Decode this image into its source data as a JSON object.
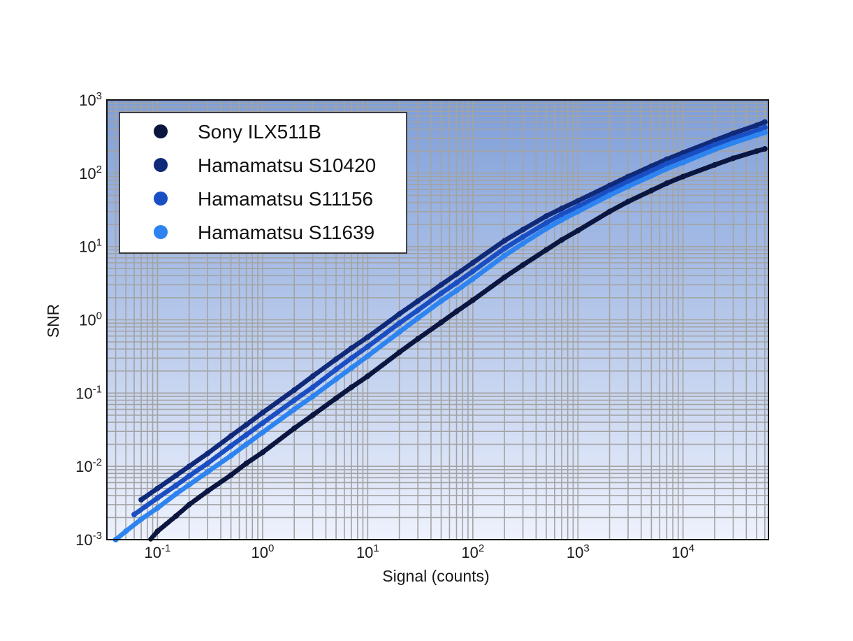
{
  "chart_data": {
    "type": "scatter",
    "title": "",
    "xlabel": "Signal (counts)",
    "ylabel": "SNR",
    "x_scale": "log",
    "y_scale": "log",
    "xlim": [
      0.033,
      65000
    ],
    "ylim": [
      0.001,
      1000
    ],
    "x_ticks": [
      {
        "base": "10",
        "exp": "-1",
        "value": 0.1
      },
      {
        "base": "10",
        "exp": "0",
        "value": 1
      },
      {
        "base": "10",
        "exp": "1",
        "value": 10
      },
      {
        "base": "10",
        "exp": "2",
        "value": 100
      },
      {
        "base": "10",
        "exp": "3",
        "value": 1000
      },
      {
        "base": "10",
        "exp": "4",
        "value": 10000
      }
    ],
    "y_ticks": [
      {
        "base": "10",
        "exp": "-3",
        "value": 0.001
      },
      {
        "base": "10",
        "exp": "-2",
        "value": 0.01
      },
      {
        "base": "10",
        "exp": "-1",
        "value": 0.1
      },
      {
        "base": "10",
        "exp": "0",
        "value": 1
      },
      {
        "base": "10",
        "exp": "1",
        "value": 10
      },
      {
        "base": "10",
        "exp": "2",
        "value": 100
      },
      {
        "base": "10",
        "exp": "3",
        "value": 1000
      }
    ],
    "grid": true,
    "legend_position": "top-left",
    "series": [
      {
        "name": "Sony ILX511B",
        "color": "#0b1640",
        "x": [
          0.08,
          0.1,
          0.15,
          0.2,
          0.3,
          0.5,
          0.7,
          1,
          2,
          3,
          5,
          7,
          10,
          20,
          30,
          50,
          70,
          100,
          200,
          300,
          500,
          700,
          1000,
          2000,
          3000,
          5000,
          7000,
          10000,
          20000,
          30000,
          50000,
          60000
        ],
        "y": [
          0.0009,
          0.0013,
          0.0021,
          0.003,
          0.0046,
          0.0076,
          0.011,
          0.0155,
          0.033,
          0.05,
          0.085,
          0.12,
          0.17,
          0.36,
          0.55,
          0.92,
          1.3,
          1.85,
          3.8,
          5.6,
          9.0,
          12.3,
          16.5,
          30,
          41,
          58,
          73,
          90,
          130,
          160,
          200,
          215
        ]
      },
      {
        "name": "Hamamatsu S10420",
        "color": "#102a7a",
        "x": [
          0.07,
          0.1,
          0.15,
          0.2,
          0.3,
          0.5,
          0.7,
          1,
          2,
          3,
          5,
          7,
          10,
          20,
          30,
          50,
          70,
          100,
          200,
          300,
          500,
          700,
          1000,
          2000,
          3000,
          5000,
          7000,
          10000,
          20000,
          30000,
          50000,
          60000
        ],
        "y": [
          0.0035,
          0.005,
          0.0075,
          0.01,
          0.015,
          0.026,
          0.037,
          0.054,
          0.11,
          0.17,
          0.29,
          0.41,
          0.58,
          1.2,
          1.8,
          3.0,
          4.2,
          6.0,
          12,
          17,
          26,
          33,
          42,
          68,
          90,
          125,
          155,
          190,
          280,
          350,
          450,
          500
        ]
      },
      {
        "name": "Hamamatsu S11156",
        "color": "#1a4fc4",
        "x": [
          0.06,
          0.1,
          0.15,
          0.2,
          0.3,
          0.5,
          0.7,
          1,
          2,
          3,
          5,
          7,
          10,
          20,
          30,
          50,
          70,
          100,
          200,
          300,
          500,
          700,
          1000,
          2000,
          3000,
          5000,
          7000,
          10000,
          20000,
          30000,
          50000,
          60000
        ],
        "y": [
          0.0022,
          0.0037,
          0.0055,
          0.0074,
          0.011,
          0.019,
          0.027,
          0.039,
          0.08,
          0.12,
          0.21,
          0.3,
          0.43,
          0.9,
          1.35,
          2.3,
          3.2,
          4.6,
          9.4,
          13.5,
          21,
          27.5,
          35,
          58,
          77,
          108,
          135,
          165,
          245,
          300,
          380,
          420
        ]
      },
      {
        "name": "Hamamatsu S11639",
        "color": "#2d84f0",
        "x": [
          0.04,
          0.05,
          0.07,
          0.1,
          0.15,
          0.2,
          0.3,
          0.5,
          0.7,
          1,
          2,
          3,
          5,
          7,
          10,
          20,
          30,
          50,
          70,
          100,
          200,
          300,
          500,
          700,
          1000,
          2000,
          3000,
          5000,
          7000,
          10000,
          20000,
          30000,
          50000,
          60000
        ],
        "y": [
          0.001,
          0.0013,
          0.0019,
          0.0027,
          0.0042,
          0.0056,
          0.0084,
          0.014,
          0.02,
          0.029,
          0.06,
          0.09,
          0.155,
          0.22,
          0.32,
          0.68,
          1.05,
          1.8,
          2.5,
          3.6,
          7.5,
          11,
          17.5,
          23,
          30,
          50,
          66,
          92,
          115,
          140,
          210,
          260,
          330,
          360
        ]
      }
    ]
  }
}
